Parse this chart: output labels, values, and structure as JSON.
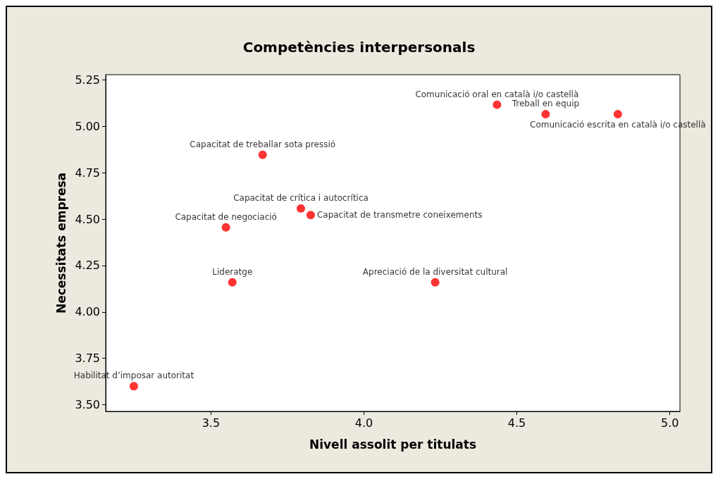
{
  "chart_data": {
    "type": "scatter",
    "title": "Competències interpersonals",
    "xlabel": "Nivell assolit per titulats",
    "ylabel": "Necessitats empresa",
    "x": [
      3.248,
      3.57,
      3.549,
      3.669,
      3.794,
      3.826,
      4.233,
      4.435,
      4.594,
      4.83
    ],
    "series": [
      {
        "color": "#ff0000",
        "values": [
          3.6,
          4.16,
          4.456,
          4.847,
          4.558,
          4.522,
          4.16,
          5.117,
          5.066,
          5.066
        ]
      }
    ],
    "marker": "circle",
    "grid": false,
    "xlim": [
      3.156,
      5.033
    ],
    "ylim": [
      3.464,
      5.279
    ],
    "xticks": [
      {
        "value": 3.5,
        "label": "3.5"
      },
      {
        "value": 4,
        "label": "4.0"
      },
      {
        "value": 4.5,
        "label": "4.5"
      },
      {
        "value": 5,
        "label": "5.0"
      }
    ],
    "yticks": [
      {
        "value": 3.5,
        "label": "3.50"
      },
      {
        "value": 3.75,
        "label": "3.75"
      },
      {
        "value": 4,
        "label": "4.00"
      },
      {
        "value": 4.25,
        "label": "4.25"
      },
      {
        "value": 4.5,
        "label": "4.50"
      },
      {
        "value": 4.75,
        "label": "4.75"
      },
      {
        "value": 5,
        "label": "5.00"
      },
      {
        "value": 5.25,
        "label": "5.25"
      }
    ],
    "annotations": [
      {
        "text": "Habilitat d’imposar autoritat",
        "x": 3.248,
        "y": 3.6
      },
      {
        "text": "Lideratge",
        "x": 3.57,
        "y": 4.16
      },
      {
        "text": "Capacitat de negociació",
        "x": 3.549,
        "y": 4.456
      },
      {
        "text": "Capacitat de treballar sota pressió",
        "x": 3.669,
        "y": 4.847
      },
      {
        "text": "Capacitat de crítica i autocrítica",
        "x": 3.794,
        "y": 4.558
      },
      {
        "text": "Capacitat de transmetre coneixements",
        "x": 3.826,
        "y": 4.522
      },
      {
        "text": "Apreciació de la diversitat cultural",
        "x": 4.233,
        "y": 4.16
      },
      {
        "text": "Comunicació oral en català i/o castellà",
        "x": 4.435,
        "y": 5.117
      },
      {
        "text": "Treball en equip",
        "x": 4.594,
        "y": 5.066
      },
      {
        "text": "Comunicació escrita en català i/o castellà",
        "x": 4.83,
        "y": 5.066
      }
    ]
  }
}
